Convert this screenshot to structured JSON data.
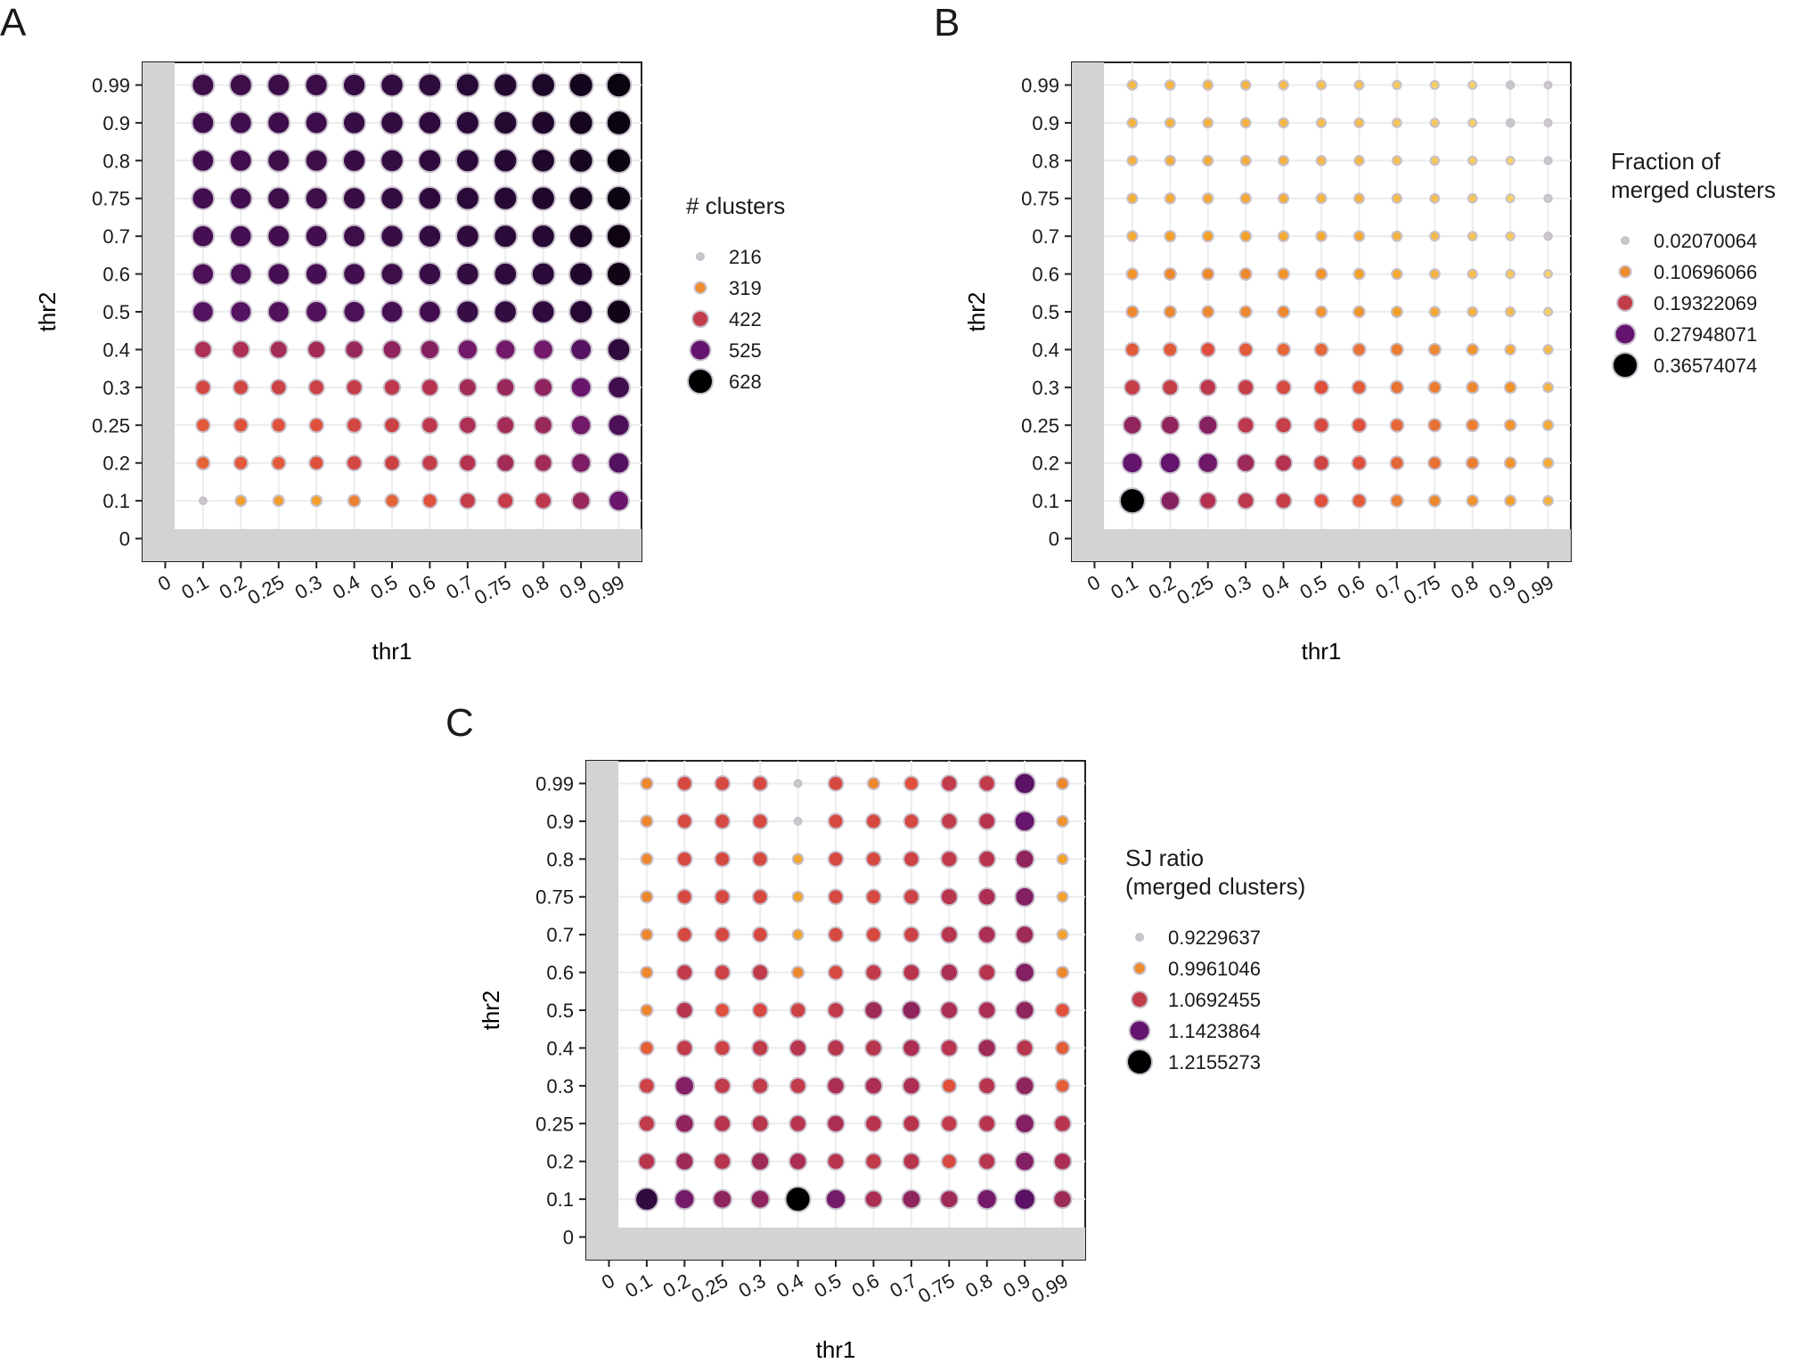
{
  "panels": [
    "A",
    "B",
    "C"
  ],
  "chart_data": [
    {
      "type": "scatter",
      "panel": "A",
      "xlabel": "thr1",
      "ylabel": "thr2",
      "x_ticks": [
        "0",
        "0.1",
        "0.2",
        "0.25",
        "0.3",
        "0.4",
        "0.5",
        "0.6",
        "0.7",
        "0.75",
        "0.8",
        "0.9",
        "0.99"
      ],
      "y_ticks": [
        "0",
        "0.1",
        "0.2",
        "0.25",
        "0.3",
        "0.4",
        "0.5",
        "0.6",
        "0.7",
        "0.75",
        "0.8",
        "0.9",
        "0.99"
      ],
      "x": [
        "0.1",
        "0.2",
        "0.25",
        "0.3",
        "0.4",
        "0.5",
        "0.6",
        "0.7",
        "0.75",
        "0.8",
        "0.9",
        "0.99"
      ],
      "y": [
        "0.1",
        "0.2",
        "0.25",
        "0.3",
        "0.4",
        "0.5",
        "0.6",
        "0.7",
        "0.75",
        "0.8",
        "0.9",
        "0.99"
      ],
      "excluded_region": "thr2 >= thr1 off-diagonal region shaded grey (row 0 and column 0)",
      "legend": {
        "title": [
          "# clusters"
        ],
        "entries": [
          "216",
          "319",
          "422",
          "525",
          "628"
        ],
        "values": [
          216,
          319,
          422,
          525,
          628
        ]
      },
      "value_range": [
        216,
        628
      ],
      "values": [
        [
          216,
          300,
          300,
          300,
          330,
          360,
          380,
          420,
          420,
          430,
          470,
          520
        ],
        [
          360,
          370,
          370,
          380,
          400,
          410,
          420,
          440,
          460,
          460,
          500,
          540
        ],
        [
          370,
          380,
          380,
          380,
          400,
          410,
          430,
          450,
          460,
          470,
          510,
          550
        ],
        [
          400,
          400,
          410,
          410,
          420,
          430,
          440,
          460,
          470,
          480,
          520,
          560
        ],
        [
          450,
          450,
          460,
          460,
          470,
          480,
          490,
          510,
          510,
          510,
          540,
          580
        ],
        [
          540,
          540,
          545,
          545,
          550,
          555,
          560,
          570,
          575,
          580,
          590,
          610
        ],
        [
          550,
          550,
          555,
          555,
          560,
          565,
          570,
          575,
          580,
          585,
          595,
          612
        ],
        [
          555,
          555,
          560,
          560,
          565,
          570,
          575,
          580,
          585,
          590,
          600,
          615
        ],
        [
          560,
          560,
          565,
          565,
          570,
          575,
          580,
          585,
          590,
          595,
          605,
          616
        ],
        [
          560,
          560,
          565,
          565,
          570,
          575,
          580,
          585,
          590,
          595,
          605,
          616
        ],
        [
          562,
          562,
          566,
          566,
          571,
          576,
          581,
          586,
          591,
          596,
          606,
          617
        ],
        [
          565,
          565,
          568,
          568,
          572,
          577,
          582,
          588,
          592,
          598,
          608,
          618
        ]
      ]
    },
    {
      "type": "scatter",
      "panel": "B",
      "xlabel": "thr1",
      "ylabel": "thr2",
      "x_ticks": [
        "0",
        "0.1",
        "0.2",
        "0.25",
        "0.3",
        "0.4",
        "0.5",
        "0.6",
        "0.7",
        "0.75",
        "0.8",
        "0.9",
        "0.99"
      ],
      "y_ticks": [
        "0",
        "0.1",
        "0.2",
        "0.25",
        "0.3",
        "0.4",
        "0.5",
        "0.6",
        "0.7",
        "0.75",
        "0.8",
        "0.9",
        "0.99"
      ],
      "x": [
        "0.1",
        "0.2",
        "0.25",
        "0.3",
        "0.4",
        "0.5",
        "0.6",
        "0.7",
        "0.75",
        "0.8",
        "0.9",
        "0.99"
      ],
      "y": [
        "0.1",
        "0.2",
        "0.25",
        "0.3",
        "0.4",
        "0.5",
        "0.6",
        "0.7",
        "0.75",
        "0.8",
        "0.9",
        "0.99"
      ],
      "legend": {
        "title": [
          "Fraction of",
          "merged clusters"
        ],
        "entries": [
          "0.02070064",
          "0.10696066",
          "0.19322069",
          "0.27948071",
          "0.36574074"
        ],
        "values": [
          0.02070064,
          0.10696066,
          0.19322069,
          0.27948071,
          0.36574074
        ]
      },
      "value_range": [
        0.02070064,
        0.36574074
      ],
      "values": [
        [
          0.3657,
          0.25,
          0.21,
          0.2,
          0.19,
          0.16,
          0.15,
          0.12,
          0.11,
          0.1,
          0.09,
          0.07
        ],
        [
          0.28,
          0.28,
          0.27,
          0.23,
          0.21,
          0.18,
          0.16,
          0.14,
          0.13,
          0.12,
          0.1,
          0.08
        ],
        [
          0.24,
          0.24,
          0.25,
          0.2,
          0.19,
          0.17,
          0.16,
          0.14,
          0.13,
          0.12,
          0.1,
          0.08
        ],
        [
          0.19,
          0.19,
          0.2,
          0.19,
          0.17,
          0.16,
          0.15,
          0.13,
          0.12,
          0.11,
          0.1,
          0.07
        ],
        [
          0.15,
          0.15,
          0.16,
          0.15,
          0.14,
          0.14,
          0.13,
          0.12,
          0.11,
          0.1,
          0.08,
          0.06
        ],
        [
          0.11,
          0.11,
          0.11,
          0.11,
          0.11,
          0.1,
          0.1,
          0.09,
          0.08,
          0.07,
          0.06,
          0.04
        ],
        [
          0.1,
          0.11,
          0.11,
          0.11,
          0.1,
          0.1,
          0.09,
          0.08,
          0.07,
          0.06,
          0.05,
          0.035
        ],
        [
          0.08,
          0.09,
          0.09,
          0.09,
          0.08,
          0.08,
          0.08,
          0.07,
          0.06,
          0.05,
          0.045,
          0.03
        ],
        [
          0.075,
          0.08,
          0.08,
          0.08,
          0.075,
          0.07,
          0.07,
          0.06,
          0.055,
          0.05,
          0.04,
          0.028
        ],
        [
          0.07,
          0.075,
          0.075,
          0.075,
          0.07,
          0.065,
          0.065,
          0.055,
          0.05,
          0.045,
          0.035,
          0.025
        ],
        [
          0.068,
          0.07,
          0.07,
          0.07,
          0.065,
          0.06,
          0.06,
          0.05,
          0.045,
          0.04,
          0.032,
          0.023
        ],
        [
          0.065,
          0.068,
          0.068,
          0.068,
          0.062,
          0.058,
          0.056,
          0.048,
          0.042,
          0.038,
          0.03,
          0.021
        ]
      ]
    },
    {
      "type": "scatter",
      "panel": "C",
      "xlabel": "thr1",
      "ylabel": "thr2",
      "x_ticks": [
        "0",
        "0.1",
        "0.2",
        "0.25",
        "0.3",
        "0.4",
        "0.5",
        "0.6",
        "0.7",
        "0.75",
        "0.8",
        "0.9",
        "0.99"
      ],
      "y_ticks": [
        "0",
        "0.1",
        "0.2",
        "0.25",
        "0.3",
        "0.4",
        "0.5",
        "0.6",
        "0.7",
        "0.75",
        "0.8",
        "0.9",
        "0.99"
      ],
      "x": [
        "0.1",
        "0.2",
        "0.25",
        "0.3",
        "0.4",
        "0.5",
        "0.6",
        "0.7",
        "0.75",
        "0.8",
        "0.9",
        "0.99"
      ],
      "y": [
        "0.1",
        "0.2",
        "0.25",
        "0.3",
        "0.4",
        "0.5",
        "0.6",
        "0.7",
        "0.75",
        "0.8",
        "0.9",
        "0.99"
      ],
      "legend": {
        "title": [
          "SJ ratio",
          "(merged clusters)"
        ],
        "entries": [
          "0.9229637",
          "0.9961046",
          "1.0692455",
          "1.1423864",
          "1.2155273"
        ],
        "values": [
          0.9229637,
          0.9961046,
          1.0692455,
          1.1423864,
          1.2155273
        ]
      },
      "value_range": [
        0.9229637,
        1.2155273
      ],
      "values": [
        [
          1.18,
          1.13,
          1.11,
          1.11,
          1.2155,
          1.13,
          1.09,
          1.11,
          1.1,
          1.13,
          1.15,
          1.1
        ],
        [
          1.08,
          1.1,
          1.08,
          1.1,
          1.09,
          1.08,
          1.07,
          1.08,
          1.05,
          1.08,
          1.12,
          1.09
        ],
        [
          1.07,
          1.11,
          1.08,
          1.08,
          1.08,
          1.09,
          1.08,
          1.08,
          1.07,
          1.08,
          1.12,
          1.08
        ],
        [
          1.06,
          1.12,
          1.07,
          1.07,
          1.07,
          1.09,
          1.09,
          1.09,
          1.04,
          1.08,
          1.11,
          1.03
        ],
        [
          1.03,
          1.07,
          1.06,
          1.07,
          1.08,
          1.08,
          1.08,
          1.09,
          1.08,
          1.1,
          1.08,
          1.03
        ],
        [
          1.0,
          1.08,
          1.04,
          1.05,
          1.06,
          1.07,
          1.1,
          1.11,
          1.09,
          1.09,
          1.11,
          1.04
        ],
        [
          1.0,
          1.07,
          1.06,
          1.07,
          1.0,
          1.05,
          1.07,
          1.08,
          1.09,
          1.08,
          1.12,
          1.0
        ],
        [
          1.0,
          1.05,
          1.05,
          1.05,
          0.98,
          1.05,
          1.05,
          1.06,
          1.08,
          1.09,
          1.1,
          0.98
        ],
        [
          1.0,
          1.05,
          1.05,
          1.05,
          0.98,
          1.05,
          1.05,
          1.06,
          1.08,
          1.09,
          1.12,
          0.98
        ],
        [
          1.0,
          1.05,
          1.05,
          1.05,
          0.975,
          1.05,
          1.05,
          1.06,
          1.07,
          1.08,
          1.11,
          0.98
        ],
        [
          1.0,
          1.05,
          1.05,
          1.05,
          0.9229637,
          1.05,
          1.05,
          1.05,
          1.07,
          1.08,
          1.14,
          0.99
        ],
        [
          1.0,
          1.05,
          1.05,
          1.05,
          0.9229637,
          1.05,
          1.0,
          1.04,
          1.07,
          1.07,
          1.15,
          1.0
        ]
      ]
    }
  ]
}
